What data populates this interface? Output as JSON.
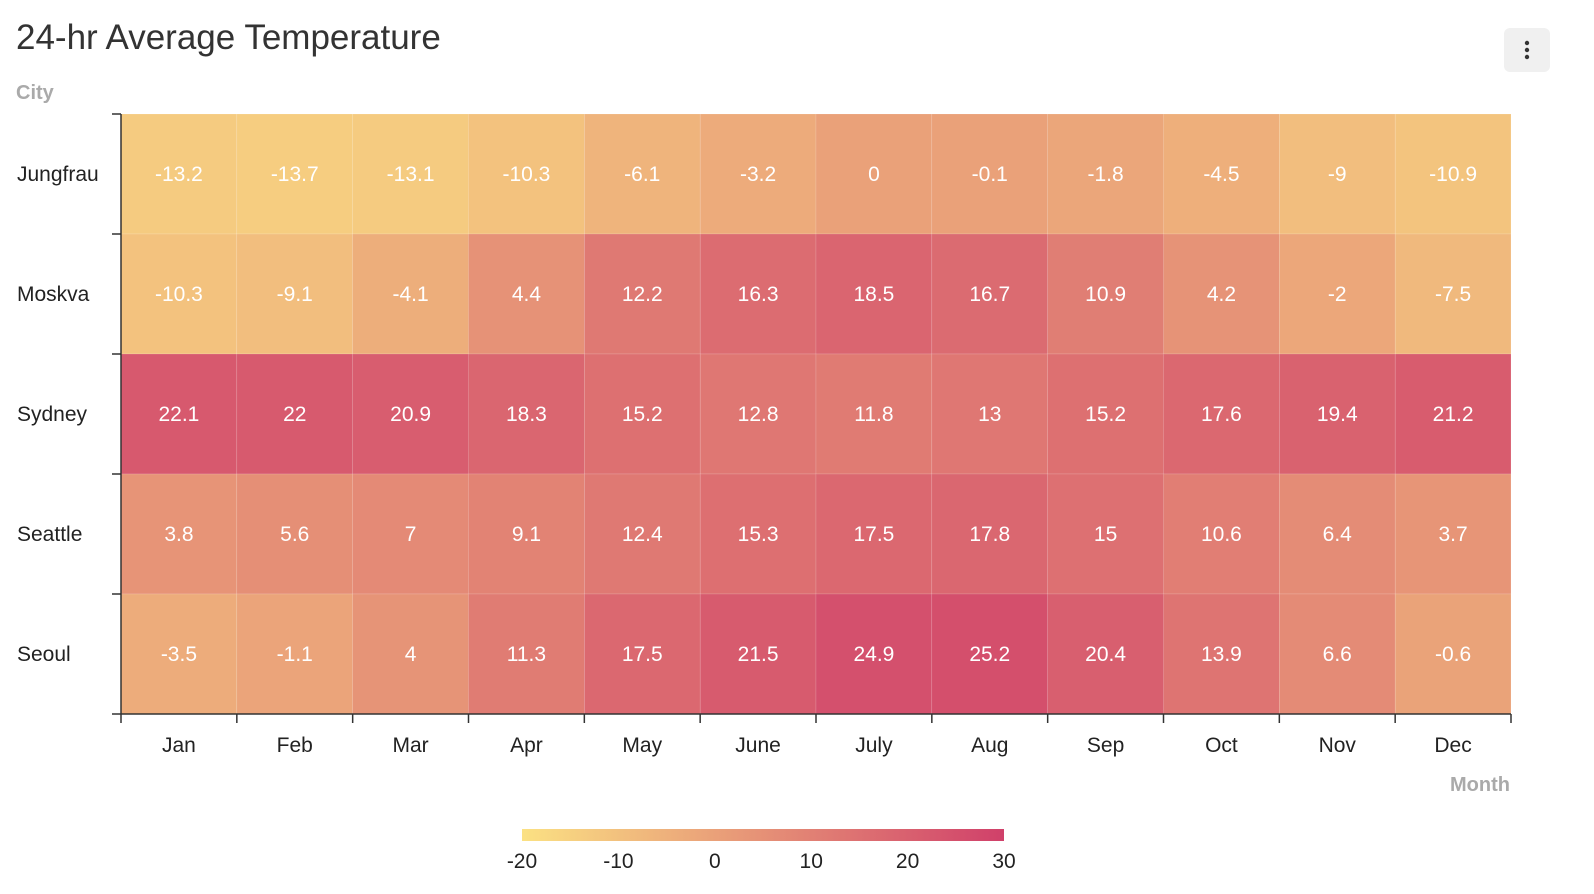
{
  "header": {
    "title": "24-hr Average Temperature",
    "menu_icon": "vertical-ellipsis-icon"
  },
  "chart_data": {
    "type": "heatmap",
    "title": "24-hr Average Temperature",
    "xlabel": "Month",
    "ylabel": "City",
    "x_categories": [
      "Jan",
      "Feb",
      "Mar",
      "Apr",
      "May",
      "June",
      "July",
      "Aug",
      "Sep",
      "Oct",
      "Nov",
      "Dec"
    ],
    "y_categories": [
      "Jungfrau",
      "Moskva",
      "Sydney",
      "Seattle",
      "Seoul"
    ],
    "values": [
      [
        -13.2,
        -13.7,
        -13.1,
        -10.3,
        -6.1,
        -3.2,
        0,
        -0.1,
        -1.8,
        -4.5,
        -9,
        -10.9
      ],
      [
        -10.3,
        -9.1,
        -4.1,
        4.4,
        12.2,
        16.3,
        18.5,
        16.7,
        10.9,
        4.2,
        -2,
        -7.5
      ],
      [
        22.1,
        22,
        20.9,
        18.3,
        15.2,
        12.8,
        11.8,
        13,
        15.2,
        17.6,
        19.4,
        21.2
      ],
      [
        3.8,
        5.6,
        7,
        9.1,
        12.4,
        15.3,
        17.5,
        17.8,
        15,
        10.6,
        6.4,
        3.7
      ],
      [
        -3.5,
        -1.1,
        4,
        11.3,
        17.5,
        21.5,
        24.9,
        25.2,
        20.4,
        13.9,
        6.6,
        -0.6
      ]
    ],
    "color_scale": {
      "min": -20,
      "max": 30,
      "min_color": "#fbe183",
      "max_color": "#d0406a",
      "ticks": [
        -20,
        -10,
        0,
        10,
        20,
        30
      ]
    },
    "legend_position": "bottom"
  }
}
